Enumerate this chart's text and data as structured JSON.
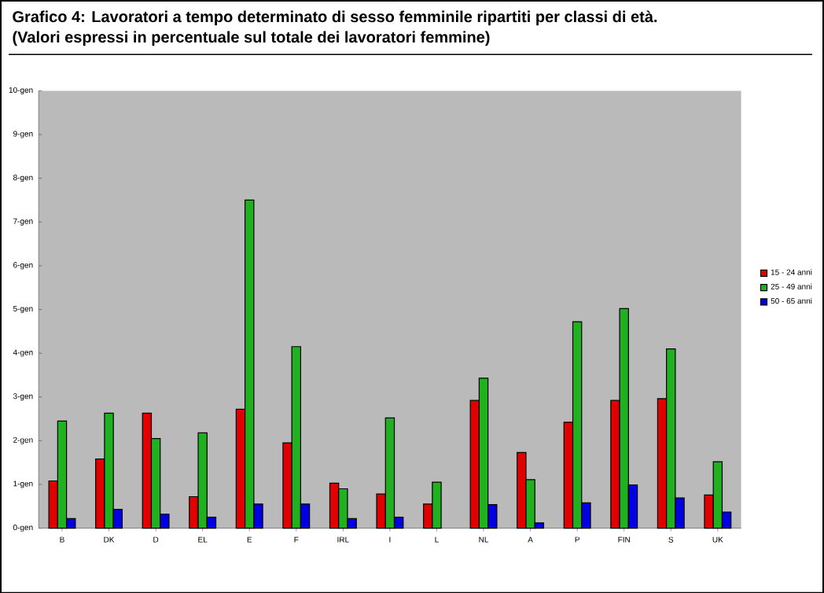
{
  "chart_data": {
    "type": "bar",
    "title": "Grafico 4: Lavoratori a tempo determinato di sesso femminile ripartiti per classi di età.",
    "subtitle": "(Valori espressi in percentuale sul totale dei lavoratori femmine)",
    "categories": [
      "B",
      "DK",
      "D",
      "EL",
      "E",
      "F",
      "IRL",
      "I",
      "L",
      "NL",
      "A",
      "P",
      "FIN",
      "S",
      "UK"
    ],
    "series": [
      {
        "name": "15 - 24 anni",
        "color": "#e00000",
        "values": [
          1.08,
          1.58,
          2.63,
          0.72,
          2.72,
          1.95,
          1.03,
          0.78,
          0.55,
          2.92,
          1.73,
          2.42,
          2.92,
          2.96,
          0.76
        ]
      },
      {
        "name": "25 - 49 anni",
        "color": "#20b020",
        "values": [
          2.45,
          2.63,
          2.05,
          2.18,
          7.5,
          4.15,
          0.9,
          2.52,
          1.05,
          3.43,
          1.11,
          4.72,
          5.02,
          4.1,
          1.52
        ]
      },
      {
        "name": "50 - 65 anni",
        "color": "#0000e0",
        "values": [
          0.22,
          0.43,
          0.32,
          0.25,
          0.55,
          0.55,
          0.22,
          0.25,
          null,
          0.54,
          0.12,
          0.58,
          0.99,
          0.69,
          0.37
        ]
      }
    ],
    "ylim": [
      0,
      10
    ],
    "yticks": [
      {
        "value": 0,
        "label": "0-gen"
      },
      {
        "value": 1,
        "label": "1-gen"
      },
      {
        "value": 2,
        "label": "2-gen"
      },
      {
        "value": 3,
        "label": "3-gen"
      },
      {
        "value": 4,
        "label": "4-gen"
      },
      {
        "value": 5,
        "label": "5-gen"
      },
      {
        "value": 6,
        "label": "6-gen"
      },
      {
        "value": 7,
        "label": "7-gen"
      },
      {
        "value": 8,
        "label": "8-gen"
      },
      {
        "value": 9,
        "label": "9-gen"
      },
      {
        "value": 10,
        "label": "10-gen"
      }
    ],
    "legend": "right"
  }
}
